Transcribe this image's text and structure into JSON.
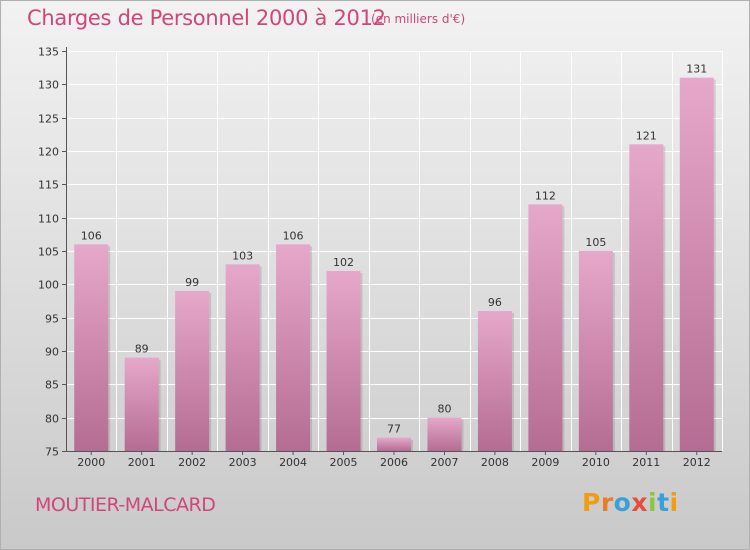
{
  "header": {
    "title": "Charges de Personnel 2000 à 2012",
    "subtitle": "(en milliers d'€)"
  },
  "footer": {
    "place": "MOUTIER-MALCARD",
    "brand": "Proxiti",
    "brand_letters": [
      {
        "ch": "P",
        "color": "#f39c12"
      },
      {
        "ch": "r",
        "color": "#e67e22"
      },
      {
        "ch": "o",
        "color": "#3aa0d8"
      },
      {
        "ch": "x",
        "color": "#e74c3c"
      },
      {
        "ch": "i",
        "color": "#8cc63f"
      },
      {
        "ch": "t",
        "color": "#3aa0d8"
      },
      {
        "ch": "i",
        "color": "#f39c12"
      }
    ]
  },
  "colors": {
    "bar_top": "#e6a8ca",
    "bar_bottom": "#b56c93",
    "text_accent": "#d0467a"
  },
  "chart_data": {
    "type": "bar",
    "title": "Charges de Personnel 2000 à 2012",
    "subtitle": "(en milliers d'€)",
    "categories": [
      "2000",
      "2001",
      "2002",
      "2003",
      "2004",
      "2005",
      "2006",
      "2007",
      "2008",
      "2009",
      "2010",
      "2011",
      "2012"
    ],
    "values": [
      106,
      89,
      99,
      103,
      106,
      102,
      77,
      80,
      96,
      112,
      105,
      121,
      131
    ],
    "ylim": [
      75,
      135
    ],
    "yticks": [
      75,
      80,
      85,
      90,
      95,
      100,
      105,
      110,
      115,
      120,
      125,
      130,
      135
    ],
    "grid": true,
    "data_labels": true
  }
}
